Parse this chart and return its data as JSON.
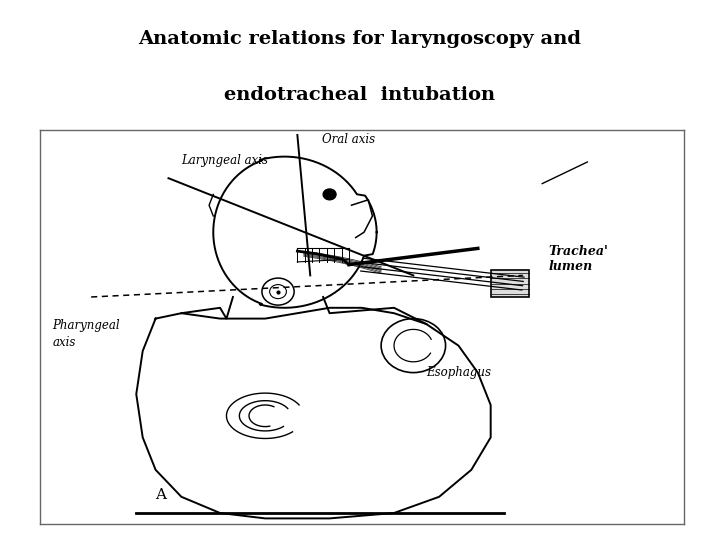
{
  "title_line1": "Anatomic relations for laryngoscopy and",
  "title_line2": "endotracheal  intubation",
  "title_fontsize": 14,
  "title_fontweight": "bold",
  "bg_color": "#ffffff",
  "label_oral_axis": "Oral axis",
  "label_laryngeal_axis": "Laryngeal axis",
  "label_pharyngeal_axis": "Pharyngeal\naxis",
  "label_tracheal_lumen": "Trachea'\nlumen",
  "label_esophagus": "Esophagus",
  "label_A": "A"
}
